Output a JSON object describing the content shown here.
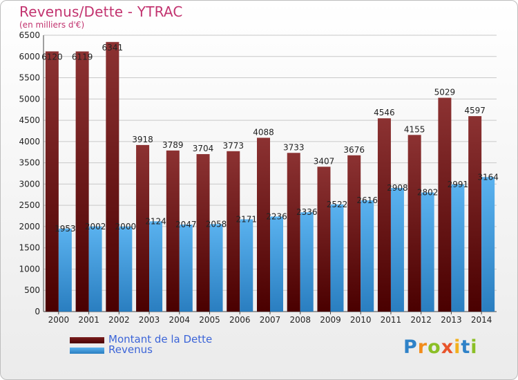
{
  "title": "Revenus/Dette - YTRAC",
  "subtitle": "(en milliers d'€)",
  "logo": {
    "letters": [
      "P",
      "r",
      "o",
      "x",
      "i",
      "t",
      "i"
    ],
    "colors": [
      "#2f82c8",
      "#f28c1b",
      "#8bbf26",
      "#e8542b",
      "#f2b01e",
      "#2f82c8",
      "#8bbf26"
    ]
  },
  "chart_data": {
    "type": "bar",
    "categories": [
      "2000",
      "2001",
      "2002",
      "2003",
      "2004",
      "2005",
      "2006",
      "2007",
      "2008",
      "2009",
      "2010",
      "2011",
      "2012",
      "2013",
      "2014"
    ],
    "series": [
      {
        "name": "Montant de la Dette",
        "color": "#7a1f1f",
        "values": [
          6120,
          6119,
          6341,
          3918,
          3789,
          3704,
          3773,
          4088,
          3733,
          3407,
          3676,
          4546,
          4155,
          5029,
          4597
        ]
      },
      {
        "name": "Revenus",
        "color": "#49a3e3",
        "values": [
          1953,
          2002,
          2000,
          2124,
          2047,
          2058,
          2171,
          2236,
          2336,
          2522,
          2616,
          2908,
          2802,
          2991,
          3164
        ]
      }
    ],
    "ylim": [
      0,
      6500
    ],
    "yticks": [
      0,
      500,
      1000,
      1500,
      2000,
      2500,
      3000,
      3500,
      4000,
      4500,
      5000,
      5500,
      6000,
      6500
    ],
    "grid": true,
    "legend": "bottom-left"
  }
}
